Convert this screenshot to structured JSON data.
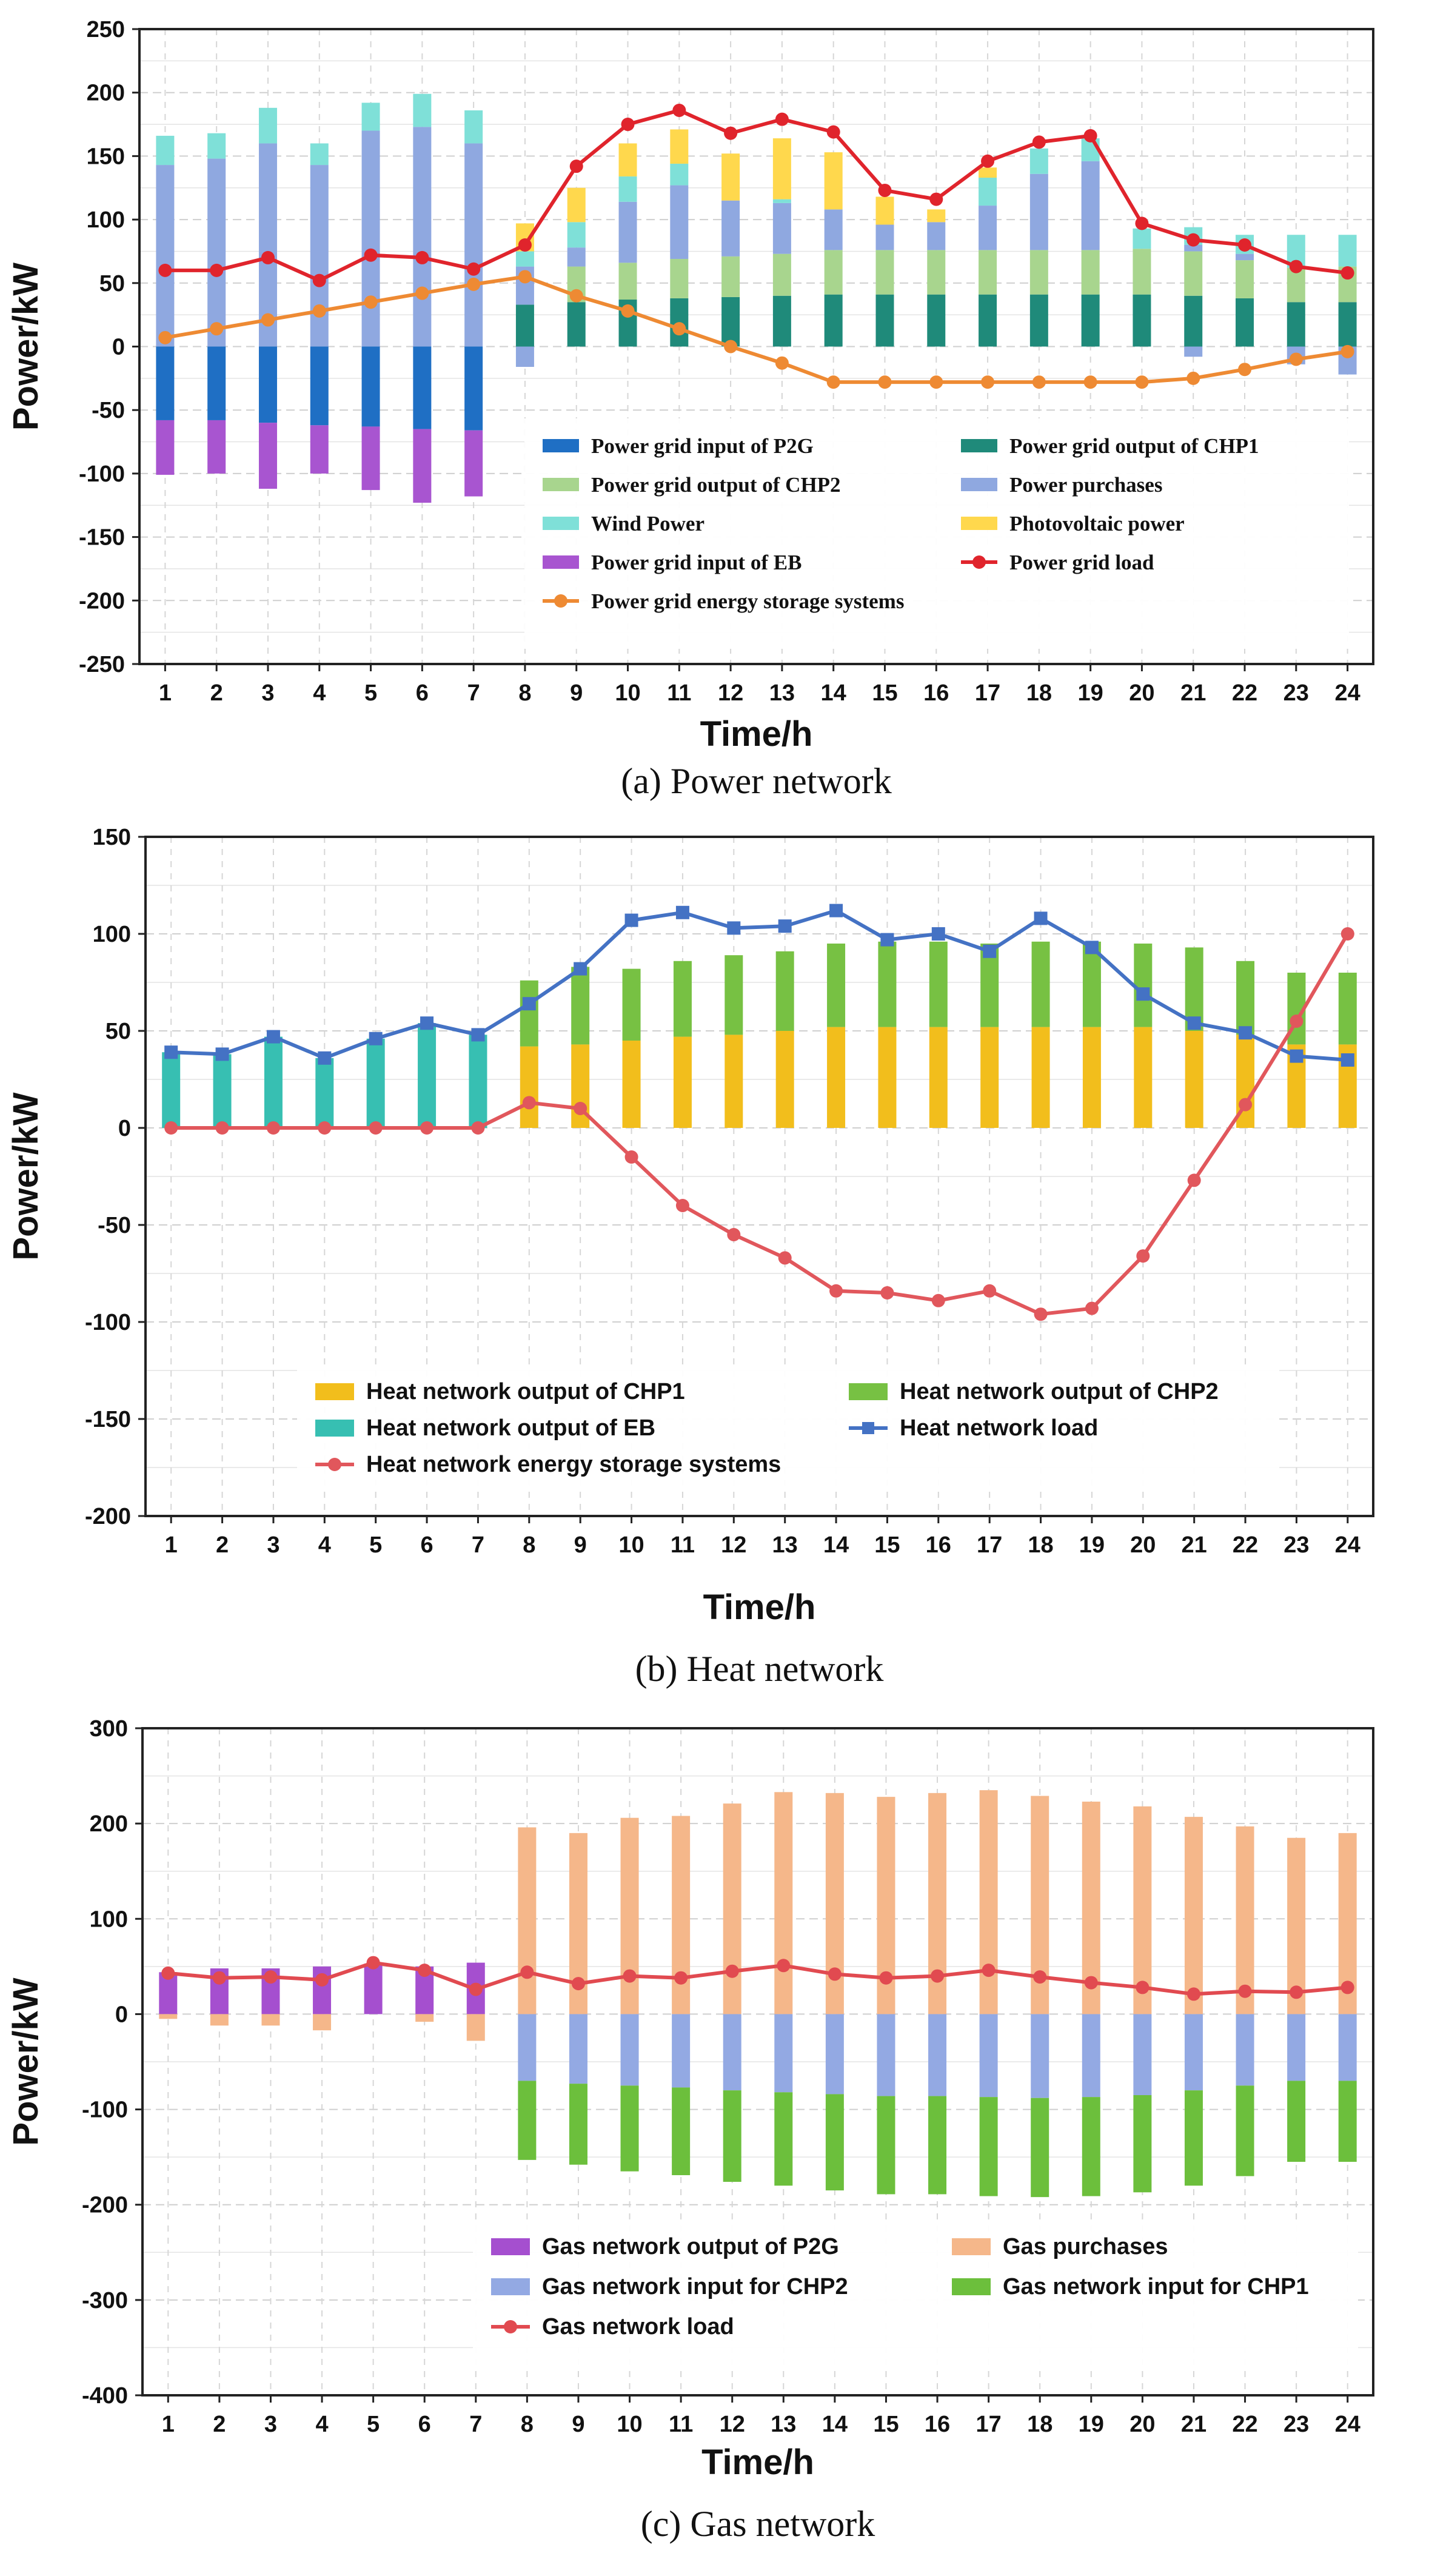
{
  "chart_data": [
    {
      "type": "bar",
      "caption": "(a) Power network",
      "xlabel": "Time/h",
      "ylabel": "Power/kW",
      "ylim": [
        -250,
        250
      ],
      "ytick_step": 50,
      "categories": [
        "1",
        "2",
        "3",
        "4",
        "5",
        "6",
        "7",
        "8",
        "9",
        "10",
        "11",
        "12",
        "13",
        "14",
        "15",
        "16",
        "17",
        "18",
        "19",
        "20",
        "21",
        "22",
        "23",
        "24"
      ],
      "series": [
        {
          "name": "Power grid input of P2G",
          "kind": "bar",
          "color": "#1f6fc4",
          "values": [
            -58,
            -58,
            -60,
            -62,
            -63,
            -65,
            -66,
            0,
            0,
            0,
            0,
            0,
            0,
            0,
            0,
            0,
            0,
            0,
            0,
            0,
            0,
            0,
            0,
            0
          ]
        },
        {
          "name": "Power grid output of CHP1",
          "kind": "bar",
          "color": "#1f8a7a",
          "values": [
            0,
            0,
            0,
            0,
            0,
            0,
            0,
            33,
            35,
            37,
            38,
            39,
            40,
            41,
            41,
            41,
            41,
            41,
            41,
            41,
            40,
            38,
            35,
            35
          ]
        },
        {
          "name": "Power grid output of CHP2",
          "kind": "bar",
          "color": "#a8d58e",
          "values": [
            0,
            0,
            0,
            0,
            0,
            0,
            0,
            0,
            28,
            29,
            31,
            32,
            33,
            35,
            35,
            35,
            35,
            35,
            35,
            36,
            35,
            30,
            27,
            28
          ]
        },
        {
          "name": "Power purchases",
          "kind": "bar",
          "color": "#8fa8e0",
          "values": [
            143,
            148,
            160,
            143,
            170,
            173,
            160,
            30,
            15,
            48,
            58,
            44,
            40,
            32,
            20,
            22,
            35,
            60,
            70,
            0,
            5,
            5,
            0,
            0
          ]
        },
        {
          "name": "Wind Power",
          "kind": "bar",
          "color": "#7fe0d8",
          "values": [
            23,
            20,
            28,
            17,
            22,
            26,
            26,
            12,
            20,
            20,
            17,
            0,
            3,
            0,
            0,
            0,
            22,
            20,
            18,
            16,
            14,
            15,
            26,
            25
          ]
        },
        {
          "name": "Photovoltaic power",
          "kind": "bar",
          "color": "#ffd84d",
          "values": [
            0,
            0,
            0,
            0,
            0,
            0,
            0,
            22,
            27,
            26,
            27,
            37,
            48,
            45,
            22,
            10,
            8,
            0,
            0,
            0,
            0,
            0,
            0,
            0
          ]
        },
        {
          "name": "Power grid input of EB",
          "kind": "bar",
          "color": "#a855d0",
          "values": [
            -43,
            -42,
            -52,
            -38,
            -50,
            -58,
            -52,
            0,
            0,
            0,
            0,
            0,
            0,
            0,
            0,
            0,
            0,
            0,
            0,
            0,
            0,
            0,
            0,
            0
          ]
        },
        {
          "name": "Power grid load",
          "kind": "line",
          "color": "#e0242c",
          "values": [
            60,
            60,
            70,
            52,
            72,
            70,
            61,
            80,
            142,
            175,
            186,
            168,
            179,
            169,
            123,
            116,
            146,
            161,
            166,
            97,
            84,
            80,
            63,
            58
          ]
        },
        {
          "name": "Power grid energy storage systems",
          "kind": "line",
          "color": "#ee8a33",
          "values": [
            7,
            14,
            21,
            28,
            35,
            42,
            49,
            55,
            40,
            28,
            14,
            0,
            -13,
            -28,
            -28,
            -28,
            -28,
            -28,
            -28,
            -28,
            -25,
            -18,
            -10,
            -4
          ]
        }
      ],
      "extra_negative": [
        0,
        0,
        0,
        0,
        0,
        0,
        0,
        -16,
        0,
        0,
        0,
        0,
        0,
        0,
        0,
        0,
        0,
        0,
        0,
        0,
        -8,
        0,
        -14,
        -22
      ],
      "legend_columns": 2,
      "legend_placement": "bottom-center"
    },
    {
      "type": "bar",
      "caption": "(b) Heat network",
      "xlabel": "Time/h",
      "ylabel": "Power/kW",
      "ylim": [
        -200,
        150
      ],
      "ytick_step": 50,
      "categories": [
        "1",
        "2",
        "3",
        "4",
        "5",
        "6",
        "7",
        "8",
        "9",
        "10",
        "11",
        "12",
        "13",
        "14",
        "15",
        "16",
        "17",
        "18",
        "19",
        "20",
        "21",
        "22",
        "23",
        "24"
      ],
      "series": [
        {
          "name": "Heat network output of CHP1",
          "kind": "bar",
          "color": "#f2be1c",
          "values": [
            0,
            0,
            0,
            0,
            0,
            0,
            0,
            42,
            43,
            45,
            47,
            48,
            50,
            52,
            52,
            52,
            52,
            52,
            52,
            52,
            50,
            48,
            43,
            43
          ]
        },
        {
          "name": "Heat network output of CHP2",
          "kind": "bar",
          "color": "#77c143",
          "values": [
            0,
            0,
            0,
            0,
            0,
            0,
            0,
            34,
            40,
            37,
            39,
            41,
            41,
            43,
            44,
            44,
            43,
            44,
            44,
            43,
            43,
            38,
            37,
            37
          ]
        },
        {
          "name": "Heat network output of EB",
          "kind": "bar",
          "color": "#37bfb2",
          "values": [
            39,
            38,
            47,
            36,
            46,
            54,
            48,
            0,
            0,
            0,
            0,
            0,
            0,
            0,
            0,
            0,
            0,
            0,
            0,
            0,
            0,
            0,
            0,
            0
          ]
        },
        {
          "name": "Heat network load",
          "kind": "line",
          "color": "#4472c4",
          "marker": "square",
          "values": [
            39,
            38,
            47,
            36,
            46,
            54,
            48,
            64,
            82,
            107,
            111,
            103,
            104,
            112,
            97,
            100,
            91,
            108,
            93,
            69,
            54,
            49,
            37,
            35
          ]
        },
        {
          "name": "Heat network energy storage systems",
          "kind": "line",
          "color": "#e1575c",
          "marker": "circle",
          "values": [
            0,
            0,
            0,
            0,
            0,
            0,
            0,
            13,
            10,
            -15,
            -40,
            -55,
            -67,
            -84,
            -85,
            -89,
            -84,
            -96,
            -93,
            -66,
            -27,
            12,
            55,
            100
          ]
        }
      ],
      "legend_columns": 2,
      "legend_placement": "bottom-center"
    },
    {
      "type": "bar",
      "caption": "(c) Gas network",
      "xlabel": "Time/h",
      "ylabel": "Power/kW",
      "ylim": [
        -400,
        300
      ],
      "ytick_step": 100,
      "categories": [
        "1",
        "2",
        "3",
        "4",
        "5",
        "6",
        "7",
        "8",
        "9",
        "10",
        "11",
        "12",
        "13",
        "14",
        "15",
        "16",
        "17",
        "18",
        "19",
        "20",
        "21",
        "22",
        "23",
        "24"
      ],
      "series": [
        {
          "name": "Gas network output of P2G",
          "kind": "bar",
          "color": "#a54fcf",
          "values": [
            44,
            48,
            48,
            50,
            53,
            50,
            54,
            0,
            0,
            0,
            0,
            0,
            0,
            0,
            0,
            0,
            0,
            0,
            0,
            0,
            0,
            0,
            0,
            0
          ]
        },
        {
          "name": "Gas purchases",
          "kind": "bar",
          "color": "#f5b78a",
          "values": [
            -5,
            -12,
            -12,
            -17,
            0,
            -8,
            -28,
            196,
            190,
            206,
            208,
            221,
            233,
            232,
            228,
            232,
            235,
            229,
            223,
            218,
            207,
            197,
            185,
            190
          ]
        },
        {
          "name": "Gas network input for CHP2",
          "kind": "bar",
          "color": "#93a9e3",
          "values": [
            0,
            0,
            0,
            0,
            0,
            0,
            0,
            -70,
            -73,
            -75,
            -77,
            -80,
            -82,
            -84,
            -86,
            -86,
            -87,
            -88,
            -87,
            -85,
            -80,
            -75,
            -70,
            -70
          ]
        },
        {
          "name": "Gas network input for CHP1",
          "kind": "bar",
          "color": "#6cbf3c",
          "values": [
            0,
            0,
            0,
            0,
            0,
            0,
            0,
            -83,
            -85,
            -90,
            -92,
            -96,
            -98,
            -101,
            -103,
            -103,
            -104,
            -104,
            -104,
            -102,
            -100,
            -95,
            -85,
            -85
          ]
        },
        {
          "name": "Gas network load",
          "kind": "line",
          "color": "#e14a50",
          "marker": "circle",
          "values": [
            43,
            38,
            39,
            36,
            54,
            46,
            26,
            44,
            32,
            40,
            38,
            45,
            51,
            42,
            38,
            40,
            46,
            39,
            33,
            28,
            21,
            24,
            23,
            28
          ]
        }
      ],
      "legend_columns": 2,
      "legend_placement": "bottom-center"
    }
  ]
}
